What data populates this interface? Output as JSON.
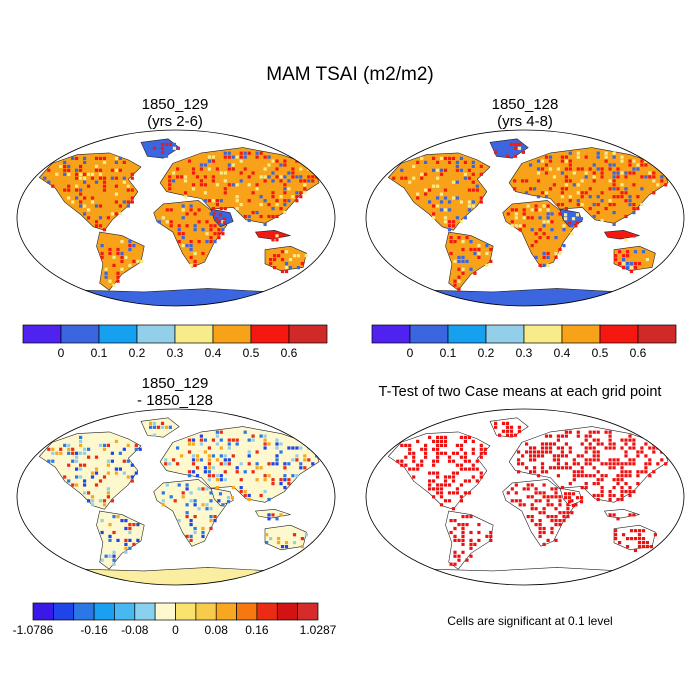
{
  "main_title": "MAM TSAI (m2/m2)",
  "panels": [
    {
      "title_line1": "1850_129",
      "title_line2": "(yrs 2-6)"
    },
    {
      "title_line1": "1850_128",
      "title_line2": "(yrs 4-8)"
    },
    {
      "title_line1": "1850_129",
      "title_line2": "- 1850_128"
    },
    {
      "title_line1": "T-Test of two Case means at each grid point",
      "title_line2": ""
    }
  ],
  "colorbar_abs": {
    "colors": [
      "#4f22f0",
      "#3b66e0",
      "#15a0f0",
      "#93cfe8",
      "#f8ec8a",
      "#f8a21a",
      "#f51811",
      "#cf2a27"
    ],
    "labels": [
      "0",
      "0.1",
      "0.2",
      "0.3",
      "0.4",
      "0.5",
      "0.6"
    ]
  },
  "colorbar_diff": {
    "colors": [
      "#3a18e8",
      "#1f45ea",
      "#2a77e8",
      "#1aa0f0",
      "#4ab8f0",
      "#8ad0ef",
      "#fdf8cd",
      "#f9e36e",
      "#f8cc4a",
      "#f8a721",
      "#f7780e",
      "#ec2b14",
      "#d31313",
      "#d72a2a"
    ],
    "labels": [
      "-1.0786",
      "-0.16",
      "-0.08",
      "0",
      "0.08",
      "0.16",
      "1.0287"
    ]
  },
  "significance_note": "Cells are significant at 0.1 level",
  "map_colors": {
    "ocean": "#ffffff",
    "abs_high": "#f51811",
    "abs_mid": "#f8a21a",
    "abs_low": "#3b66e0",
    "abs_veg": "#f8ec8a",
    "diff_neutral": "#fdf8cd",
    "diff_low": "#93cfe8",
    "diff_neg": "#2a77e8",
    "diff_pos": "#f8a721",
    "sig": "#ee1111"
  }
}
